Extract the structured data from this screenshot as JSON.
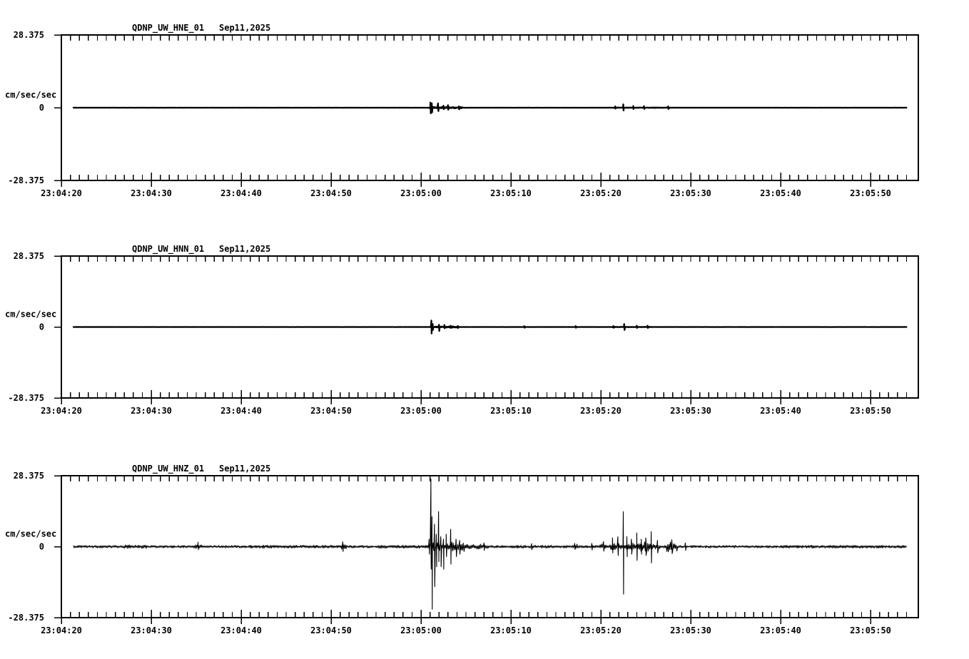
{
  "page": {
    "background_color": "#ffffff",
    "ink_color": "#000000",
    "description": "Three stacked seismogram (webicorder) strip charts for station QDNP, network UW, channels HNE/HNN/HNZ"
  },
  "chart_data": {
    "type": "line",
    "layout": "three stacked seismogram panels sharing identical time and amplitude axes",
    "time_reference": "spike and patch times are seconds after 23:04:20",
    "x_axis": {
      "start_label": "23:04:20",
      "span_seconds": 95.3,
      "major_interval_seconds": 10,
      "minor_interval_seconds": 1,
      "major_tick_labels": [
        "23:04:20",
        "23:04:30",
        "23:04:40",
        "23:04:50",
        "23:05:00",
        "23:05:10",
        "23:05:20",
        "23:05:30",
        "23:05:40",
        "23:05:50"
      ]
    },
    "y_axis": {
      "max": 28.375,
      "min": -28.375,
      "unit_label": "cm/sec/sec",
      "tick_labels": [
        "28.375",
        "0",
        "-28.375"
      ]
    },
    "panels": [
      {
        "id": "HNE",
        "title": "QDNP_UW_HNE_01",
        "date": "Sep11,2025",
        "seed": 11,
        "trace": {
          "t0": 1.35,
          "t1": 94.0,
          "base_noise": 0.04,
          "patches": [
            [
              40.9,
              44.6,
              0.3
            ],
            [
              61.4,
              67.8,
              0.12
            ]
          ],
          "spikes": [
            [
              41.05,
              2.0,
              2.2
            ],
            [
              41.2,
              1.7,
              1.8
            ],
            [
              41.9,
              1.7,
              1.3
            ],
            [
              42.5,
              0.8,
              0.6
            ],
            [
              43.0,
              1.0,
              0.8
            ],
            [
              44.2,
              0.5,
              0.6
            ],
            [
              61.6,
              0.5,
              0.4
            ],
            [
              62.5,
              1.3,
              1.1
            ],
            [
              63.6,
              0.6,
              0.5
            ],
            [
              64.8,
              0.6,
              0.5
            ],
            [
              67.5,
              0.5,
              0.5
            ]
          ]
        }
      },
      {
        "id": "HNN",
        "title": "QDNP_UW_HNN_01",
        "date": "Sep11,2025",
        "seed": 23,
        "trace": {
          "t0": 1.35,
          "t1": 94.0,
          "base_noise": 0.04,
          "patches": [
            [
              41.0,
              44.3,
              0.25
            ],
            [
              61.2,
              65.6,
              0.1
            ]
          ],
          "spikes": [
            [
              41.15,
              2.6,
              2.6
            ],
            [
              41.3,
              1.2,
              1.2
            ],
            [
              42.0,
              0.9,
              1.6
            ],
            [
              42.6,
              0.8,
              0.5
            ],
            [
              43.3,
              0.5,
              0.4
            ],
            [
              44.1,
              0.4,
              0.4
            ],
            [
              51.5,
              0.35,
              0.3
            ],
            [
              57.2,
              0.4,
              0.3
            ],
            [
              61.4,
              0.4,
              0.3
            ],
            [
              62.6,
              1.2,
              1.2
            ],
            [
              64.0,
              0.5,
              0.4
            ],
            [
              65.2,
              0.5,
              0.4
            ]
          ]
        }
      },
      {
        "id": "HNZ",
        "title": "QDNP_UW_HNZ_01",
        "date": "Sep11,2025",
        "seed": 5,
        "trace": {
          "t0": 1.35,
          "t1": 94.0,
          "base_noise": 0.5,
          "patches": [
            [
              7,
              9.5,
              0.7
            ],
            [
              14.8,
              15.6,
              0.95
            ],
            [
              21,
              30,
              0.62
            ],
            [
              31.0,
              31.7,
              1.2
            ],
            [
              35,
              40.8,
              0.62
            ],
            [
              40.8,
              43.2,
              1.6
            ],
            [
              43.2,
              44.8,
              2.3
            ],
            [
              44.8,
              47.5,
              1.0
            ],
            [
              50,
              55,
              0.6
            ],
            [
              56.8,
              57.4,
              1.0
            ],
            [
              59.8,
              60.6,
              1.0
            ],
            [
              61,
              63.5,
              1.4
            ],
            [
              63.5,
              65.4,
              1.9
            ],
            [
              65.4,
              66.6,
              1.2
            ],
            [
              67.3,
              68.5,
              2.1
            ],
            [
              80,
              93.9,
              0.58
            ]
          ],
          "spikes": [
            [
              15.2,
              1.8,
              1.2
            ],
            [
              31.3,
              1.9,
              1.9
            ],
            [
              40.9,
              3,
              3
            ],
            [
              41.1,
              27,
              9
            ],
            [
              41.22,
              12,
              25
            ],
            [
              41.5,
              9,
              16
            ],
            [
              41.7,
              5,
              8
            ],
            [
              41.95,
              14,
              6
            ],
            [
              42.2,
              4,
              8
            ],
            [
              42.5,
              3,
              9
            ],
            [
              42.8,
              5,
              4
            ],
            [
              43.3,
              7,
              7
            ],
            [
              43.9,
              3,
              4
            ],
            [
              44.3,
              2.5,
              3
            ],
            [
              47.0,
              1.5,
              1.5
            ],
            [
              52.3,
              1.2,
              1.2
            ],
            [
              57.1,
              1.3,
              1.1
            ],
            [
              59.0,
              1.3,
              1.3
            ],
            [
              60.3,
              2.0,
              1.8
            ],
            [
              61.3,
              3.5,
              2.5
            ],
            [
              61.9,
              4.0,
              3.5
            ],
            [
              62.5,
              14,
              19
            ],
            [
              62.9,
              4,
              4
            ],
            [
              63.4,
              3,
              3
            ],
            [
              64.0,
              5.5,
              5.5
            ],
            [
              64.5,
              3,
              3
            ],
            [
              65.0,
              3.5,
              3.5
            ],
            [
              65.6,
              6,
              6.5
            ],
            [
              66.3,
              2.5,
              2.5
            ],
            [
              67.9,
              2.8,
              2.8
            ],
            [
              69.4,
              1.5,
              1.5
            ]
          ]
        }
      }
    ]
  }
}
